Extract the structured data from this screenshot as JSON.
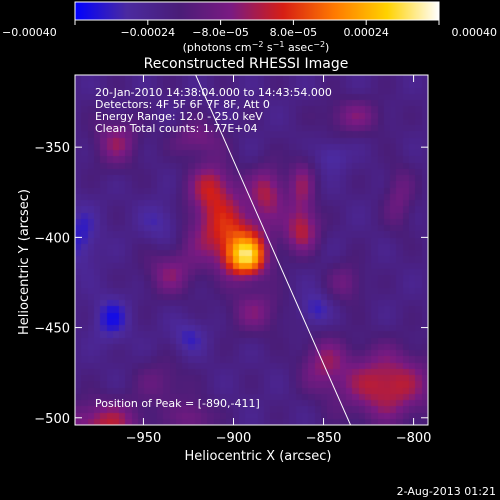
{
  "chart_data": {
    "type": "heatmap",
    "title": "Reconstructed RHESSI Image",
    "info_lines": [
      "20-Jan-2010 14:38:04.000 to 14:43:54.000",
      "Detectors: 4F 5F 6F 7F 8F, Att 0",
      "Energy Range: 12.0 - 25.0 keV",
      "Clean     Total counts: 1.77E+04"
    ],
    "peak_label": "Position of Peak = [-890,-411]",
    "peak": [
      -890,
      -411
    ],
    "xlabel": "Heliocentric X (arcsec)",
    "ylabel": "Heliocentric Y (arcsec)",
    "xlim": [
      -988,
      -792
    ],
    "ylim": [
      -504,
      -310
    ],
    "x_ticks": [
      {
        "value": -950,
        "label": "−950"
      },
      {
        "value": -900,
        "label": "−900"
      },
      {
        "value": -850,
        "label": "−850"
      },
      {
        "value": -800,
        "label": "−800"
      }
    ],
    "y_ticks": [
      {
        "value": -350,
        "label": "−350"
      },
      {
        "value": -400,
        "label": "−400"
      },
      {
        "value": -450,
        "label": "−450"
      },
      {
        "value": -500,
        "label": "−500"
      }
    ],
    "colorbar": {
      "range": [
        -0.0004,
        0.0004
      ],
      "ticks": [
        {
          "value": -0.0004,
          "label": "−0.00040"
        },
        {
          "value": -0.00024,
          "label": "−0.00024"
        },
        {
          "value": -8e-05,
          "label": "−8.0e−05"
        },
        {
          "value": 8e-05,
          "label": "8.0e−05"
        },
        {
          "value": 0.00024,
          "label": "0.00024"
        },
        {
          "value": 0.0004,
          "label": "0.00040"
        }
      ],
      "unit_parts": [
        "(photons cm",
        "−2",
        " s",
        "−1",
        " asec",
        "−2",
        ")"
      ]
    },
    "colormap": [
      "#0000ff",
      "#4b2aa0",
      "#4a1d78",
      "#7a1a82",
      "#d61e14",
      "#ff7a00",
      "#ffd200",
      "#ffffff"
    ],
    "limb_line": [
      [
        -921,
        -310
      ],
      [
        -835,
        -504
      ]
    ],
    "sources": [
      {
        "x": -893,
        "y": -411,
        "amp": 0.00042,
        "sx": 8,
        "sy": 8
      },
      {
        "x": -904,
        "y": -397,
        "amp": 0.00026,
        "sx": 15,
        "sy": 13
      },
      {
        "x": -912,
        "y": -372,
        "amp": 0.00022,
        "sx": 9,
        "sy": 10
      },
      {
        "x": -881,
        "y": -374,
        "amp": 0.0002,
        "sx": 7,
        "sy": 10
      },
      {
        "x": -862,
        "y": -396,
        "amp": 0.00021,
        "sx": 7,
        "sy": 9
      },
      {
        "x": -862,
        "y": -372,
        "amp": 0.00016,
        "sx": 5,
        "sy": 12
      },
      {
        "x": -935,
        "y": -420,
        "amp": 0.00015,
        "sx": 10,
        "sy": 9
      },
      {
        "x": -920,
        "y": -345,
        "amp": 0.00014,
        "sx": 10,
        "sy": 7
      },
      {
        "x": -965,
        "y": -347,
        "amp": 0.00017,
        "sx": 9,
        "sy": 10
      },
      {
        "x": -833,
        "y": -333,
        "amp": 0.00014,
        "sx": 12,
        "sy": 7
      },
      {
        "x": -808,
        "y": -378,
        "amp": 0.00012,
        "sx": 6,
        "sy": 13
      },
      {
        "x": -888,
        "y": -441,
        "amp": 0.00014,
        "sx": 11,
        "sy": 9
      },
      {
        "x": -837,
        "y": -425,
        "amp": 0.00012,
        "sx": 7,
        "sy": 8
      },
      {
        "x": -815,
        "y": -482,
        "amp": 0.00025,
        "sx": 18,
        "sy": 14
      },
      {
        "x": -850,
        "y": -470,
        "amp": 0.00016,
        "sx": 9,
        "sy": 11
      },
      {
        "x": -972,
        "y": -503,
        "amp": 0.00022,
        "sx": 16,
        "sy": 9
      },
      {
        "x": -940,
        "y": -480,
        "amp": 0.0001,
        "sx": 10,
        "sy": 9
      },
      {
        "x": -922,
        "y": -500,
        "amp": 0.00014,
        "sx": 8,
        "sy": 7
      }
    ],
    "background": -0.00021,
    "dips": [
      {
        "x": -968,
        "y": -445,
        "amp": -0.00014,
        "sx": 7,
        "sy": 9
      },
      {
        "x": -985,
        "y": -400,
        "amp": -0.00012,
        "sx": 7,
        "sy": 12
      },
      {
        "x": -940,
        "y": -392,
        "amp": -0.0001,
        "sx": 8,
        "sy": 8
      },
      {
        "x": -845,
        "y": -355,
        "amp": -0.0001,
        "sx": 6,
        "sy": 6
      },
      {
        "x": -855,
        "y": -440,
        "amp": -0.00012,
        "sx": 6,
        "sy": 7
      },
      {
        "x": -925,
        "y": -455,
        "amp": -0.0001,
        "sx": 7,
        "sy": 7
      }
    ]
  },
  "footer": {
    "date": "2-Aug-2013 01:21"
  }
}
